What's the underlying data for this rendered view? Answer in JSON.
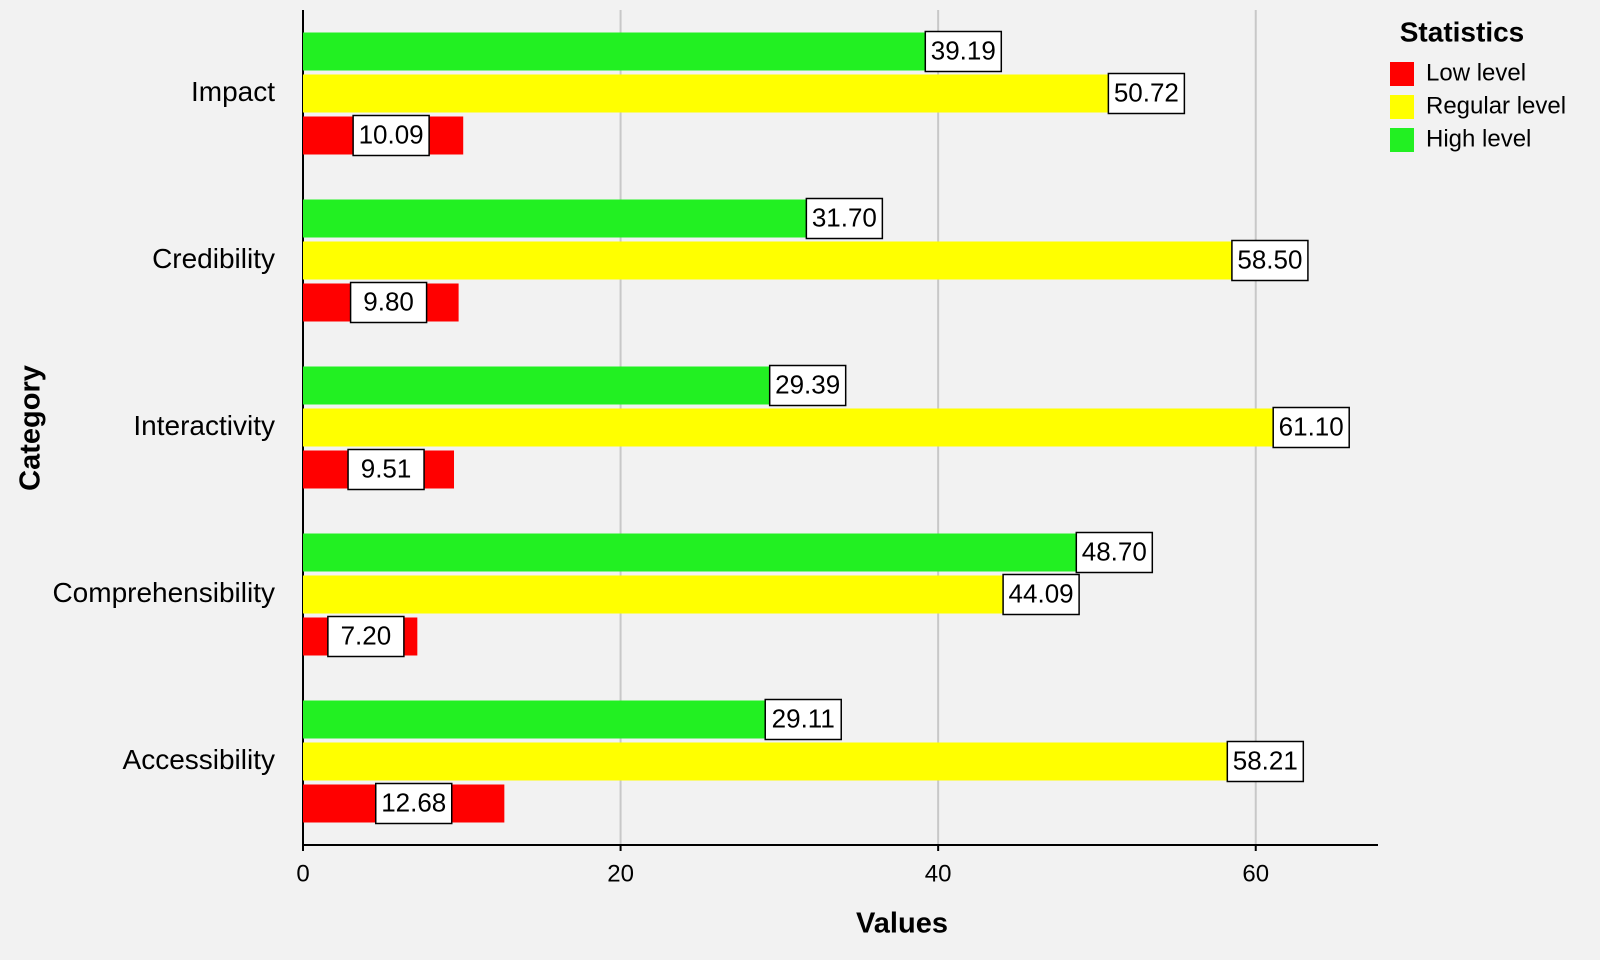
{
  "chart_data": {
    "type": "hbar",
    "x_label": "Values",
    "y_label": "Category",
    "legend_title": "Statistics",
    "categories": [
      "Impact",
      "Credibility",
      "Interactivity",
      "Comprehensibility",
      "Accessibility"
    ],
    "series": [
      {
        "name": "Low level",
        "color": "#ff0000",
        "values": [
          10.09,
          9.8,
          9.51,
          7.2,
          12.68
        ],
        "value_labels": [
          "10.09",
          "9.80",
          "9.51",
          "7.20",
          "12.68"
        ]
      },
      {
        "name": "Regular level",
        "color": "#ffff00",
        "values": [
          50.72,
          58.5,
          61.1,
          44.09,
          58.21
        ],
        "value_labels": [
          "50.72",
          "58.50",
          "61.10",
          "44.09",
          "58.21"
        ]
      },
      {
        "name": "High level",
        "color": "#22f022",
        "values": [
          39.19,
          31.7,
          29.39,
          48.7,
          29.11
        ],
        "value_labels": [
          "39.19",
          "31.70",
          "29.39",
          "48.70",
          "29.11"
        ]
      }
    ],
    "xlim": [
      0,
      67.7
    ],
    "xticks": [
      0,
      20,
      40,
      60
    ],
    "grid": true
  }
}
